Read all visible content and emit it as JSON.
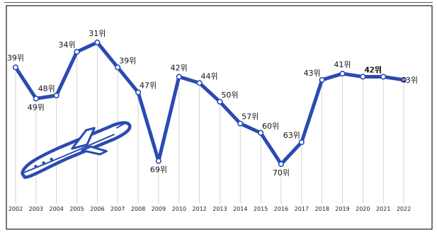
{
  "chart_data": {
    "type": "line",
    "title": "",
    "xlabel": "",
    "ylabel": "",
    "y_inverted": true,
    "grid": "vertical",
    "line_color": "#2a4bb0",
    "icon": "airplane-icon",
    "categories": [
      "2002",
      "2003",
      "2004",
      "2005",
      "2006",
      "2007",
      "2008",
      "2009",
      "2010",
      "2012",
      "2013",
      "2014",
      "2015",
      "2016",
      "2017",
      "2018",
      "2019",
      "2020",
      "2021",
      "2022"
    ],
    "series": [
      {
        "values": [
          39,
          49,
          48,
          34,
          31,
          39,
          47,
          69,
          42,
          44,
          50,
          57,
          60,
          70,
          63,
          43,
          41,
          42,
          42,
          43
        ]
      }
    ],
    "data_labels": [
      "39위",
      "49위",
      "48위",
      "34위",
      "31위",
      "39위",
      "47위",
      "69위",
      "42위",
      "44위",
      "50위",
      "57위",
      "60위",
      "70위",
      "63위",
      "43위",
      "41위",
      "42위",
      "42위",
      "43위"
    ]
  }
}
